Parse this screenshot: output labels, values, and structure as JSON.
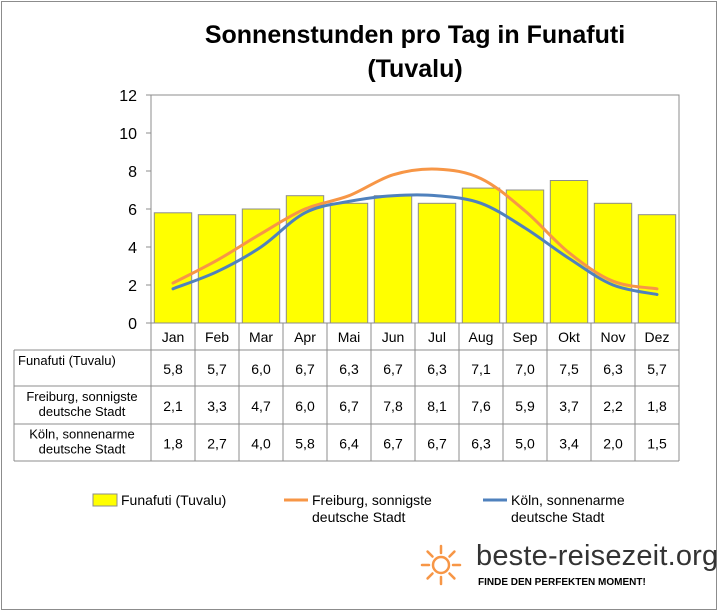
{
  "chart_data": {
    "type": "bar",
    "title_lines": [
      "Sonnenstunden pro Tag in Funafuti",
      "(Tuvalu)"
    ],
    "categories": [
      "Jan",
      "Feb",
      "Mar",
      "Apr",
      "Mai",
      "Jun",
      "Jul",
      "Aug",
      "Sep",
      "Okt",
      "Nov",
      "Dez"
    ],
    "ylim": [
      0,
      12
    ],
    "yticks": [
      "0",
      "2",
      "4",
      "6",
      "8",
      "10",
      "12"
    ],
    "grid": false,
    "legend_position": "bottom",
    "series": [
      {
        "name": "Funafuti (Tuvalu)",
        "name_lines": [
          "Funafuti (Tuvalu)"
        ],
        "kind": "bar",
        "color": "#ffff00",
        "values": [
          5.8,
          5.7,
          6.0,
          6.7,
          6.3,
          6.7,
          6.3,
          7.1,
          7.0,
          7.5,
          6.3,
          5.7
        ],
        "labels": [
          "5,8",
          "5,7",
          "6,0",
          "6,7",
          "6,3",
          "6,7",
          "6,3",
          "7,1",
          "7,0",
          "7,5",
          "6,3",
          "5,7"
        ]
      },
      {
        "name": "Freiburg, sonnigste deutsche Stadt",
        "name_lines": [
          "Freiburg, sonnigste",
          "deutsche Stadt"
        ],
        "kind": "line",
        "color": "#f79646",
        "values": [
          2.1,
          3.3,
          4.7,
          6.0,
          6.7,
          7.8,
          8.1,
          7.6,
          5.9,
          3.7,
          2.2,
          1.8
        ],
        "labels": [
          "2,1",
          "3,3",
          "4,7",
          "6,0",
          "6,7",
          "7,8",
          "8,1",
          "7,6",
          "5,9",
          "3,7",
          "2,2",
          "1,8"
        ]
      },
      {
        "name": "Köln, sonnenarme deutsche Stadt",
        "name_lines": [
          "Köln, sonnenarme",
          "deutsche Stadt"
        ],
        "kind": "line",
        "color": "#4f81bd",
        "values": [
          1.8,
          2.7,
          4.0,
          5.8,
          6.4,
          6.7,
          6.7,
          6.3,
          5.0,
          3.4,
          2.0,
          1.5
        ],
        "labels": [
          "1,8",
          "2,7",
          "4,0",
          "5,8",
          "6,4",
          "6,7",
          "6,7",
          "6,3",
          "5,0",
          "3,4",
          "2,0",
          "1,5"
        ]
      }
    ]
  },
  "logo": {
    "icon": "sun-icon",
    "icon_color": "#f79646",
    "text": "beste-reisezeit.org",
    "tagline": "FINDE DEN PERFEKTEN MOMENT!"
  }
}
